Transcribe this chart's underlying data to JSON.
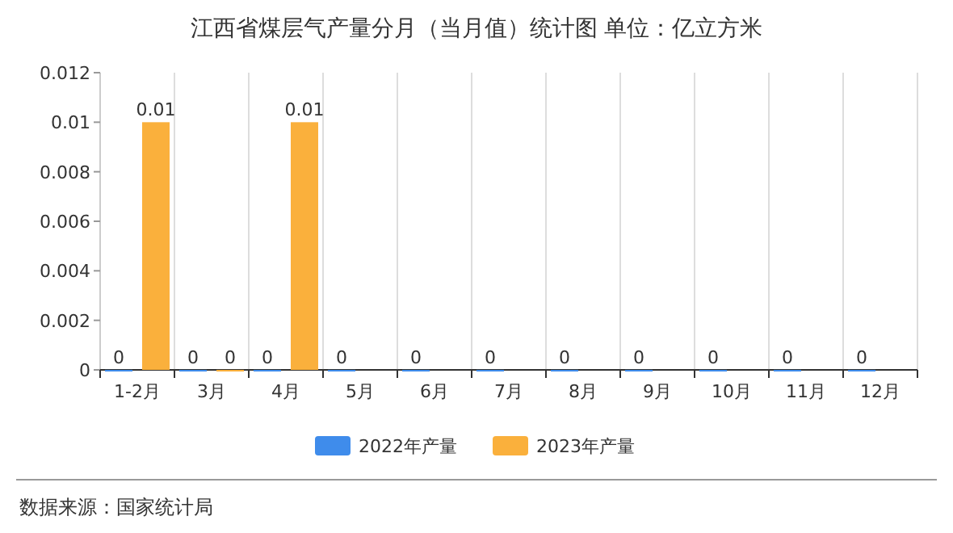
{
  "chart_data": {
    "type": "bar",
    "title": "江西省煤层气产量分月（当月值）统计图  单位：亿立方米",
    "categories": [
      "1-2月",
      "3月",
      "4月",
      "5月",
      "6月",
      "7月",
      "8月",
      "9月",
      "10月",
      "11月",
      "12月"
    ],
    "series": [
      {
        "name": "2022年产量",
        "color": "#3f8ceb",
        "values": [
          0,
          0,
          0,
          0,
          0,
          0,
          0,
          0,
          0,
          0,
          0
        ]
      },
      {
        "name": "2023年产量",
        "color": "#fab03c",
        "values": [
          0.01,
          0,
          0.01,
          null,
          null,
          null,
          null,
          null,
          null,
          null,
          null
        ]
      }
    ],
    "ylim": [
      0,
      0.012
    ],
    "yticks": [
      0,
      0.002,
      0.004,
      0.006,
      0.008,
      0.01,
      0.012
    ],
    "grid": "x",
    "legend": "bottom",
    "data_labels": true,
    "annotations": [
      "数据来源：国家统计局"
    ]
  }
}
